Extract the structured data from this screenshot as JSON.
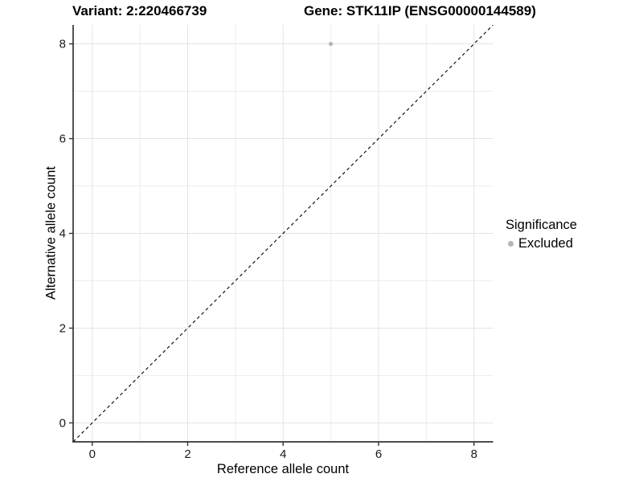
{
  "titles": {
    "variant": "Variant: 2:220466739",
    "gene": "Gene: STK11IP (ENSG00000144589)"
  },
  "legend": {
    "title": "Significance",
    "items": [
      {
        "label": "Excluded",
        "color": "#b5b5b5"
      }
    ]
  },
  "colors": {
    "background": "#ffffff",
    "grid_major": "#e3e3e3",
    "grid_minor": "#ededed",
    "axis_line": "#333333",
    "tick_label": "#1a1a1a",
    "reference_line": "#000000",
    "point": "#b5b5b5"
  },
  "chart_data": {
    "type": "scatter",
    "title": "Variant: 2:220466739   Gene: STK11IP (ENSG00000144589)",
    "xlabel": "Reference allele count",
    "ylabel": "Alternative allele count",
    "xlim": [
      -0.4,
      8.4
    ],
    "ylim": [
      -0.4,
      8.4
    ],
    "x_ticks": [
      0,
      2,
      4,
      6,
      8
    ],
    "y_ticks": [
      0,
      2,
      4,
      6,
      8
    ],
    "minor_ticks": [
      1,
      3,
      5,
      7
    ],
    "grid": "on",
    "legend_position": "right",
    "series": [
      {
        "name": "Excluded",
        "color": "#b5b5b5",
        "points": [
          {
            "x": 5,
            "y": 8
          }
        ]
      }
    ],
    "reference_line": {
      "type": "identity",
      "slope": 1,
      "intercept": 0,
      "style": "dashed",
      "color": "#000000"
    }
  }
}
